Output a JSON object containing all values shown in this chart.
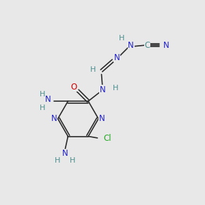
{
  "bg_color": "#e8e8e8",
  "atom_colors": {
    "C": "#4a8f8f",
    "N": "#2020cc",
    "O": "#cc0000",
    "Cl": "#22aa22",
    "H": "#4a8f8f",
    "bond": "#2a2a2a"
  },
  "font_size": 8.5,
  "figsize": [
    3.0,
    3.0
  ],
  "dpi": 100,
  "xlim": [
    0,
    10
  ],
  "ylim": [
    0,
    10
  ]
}
